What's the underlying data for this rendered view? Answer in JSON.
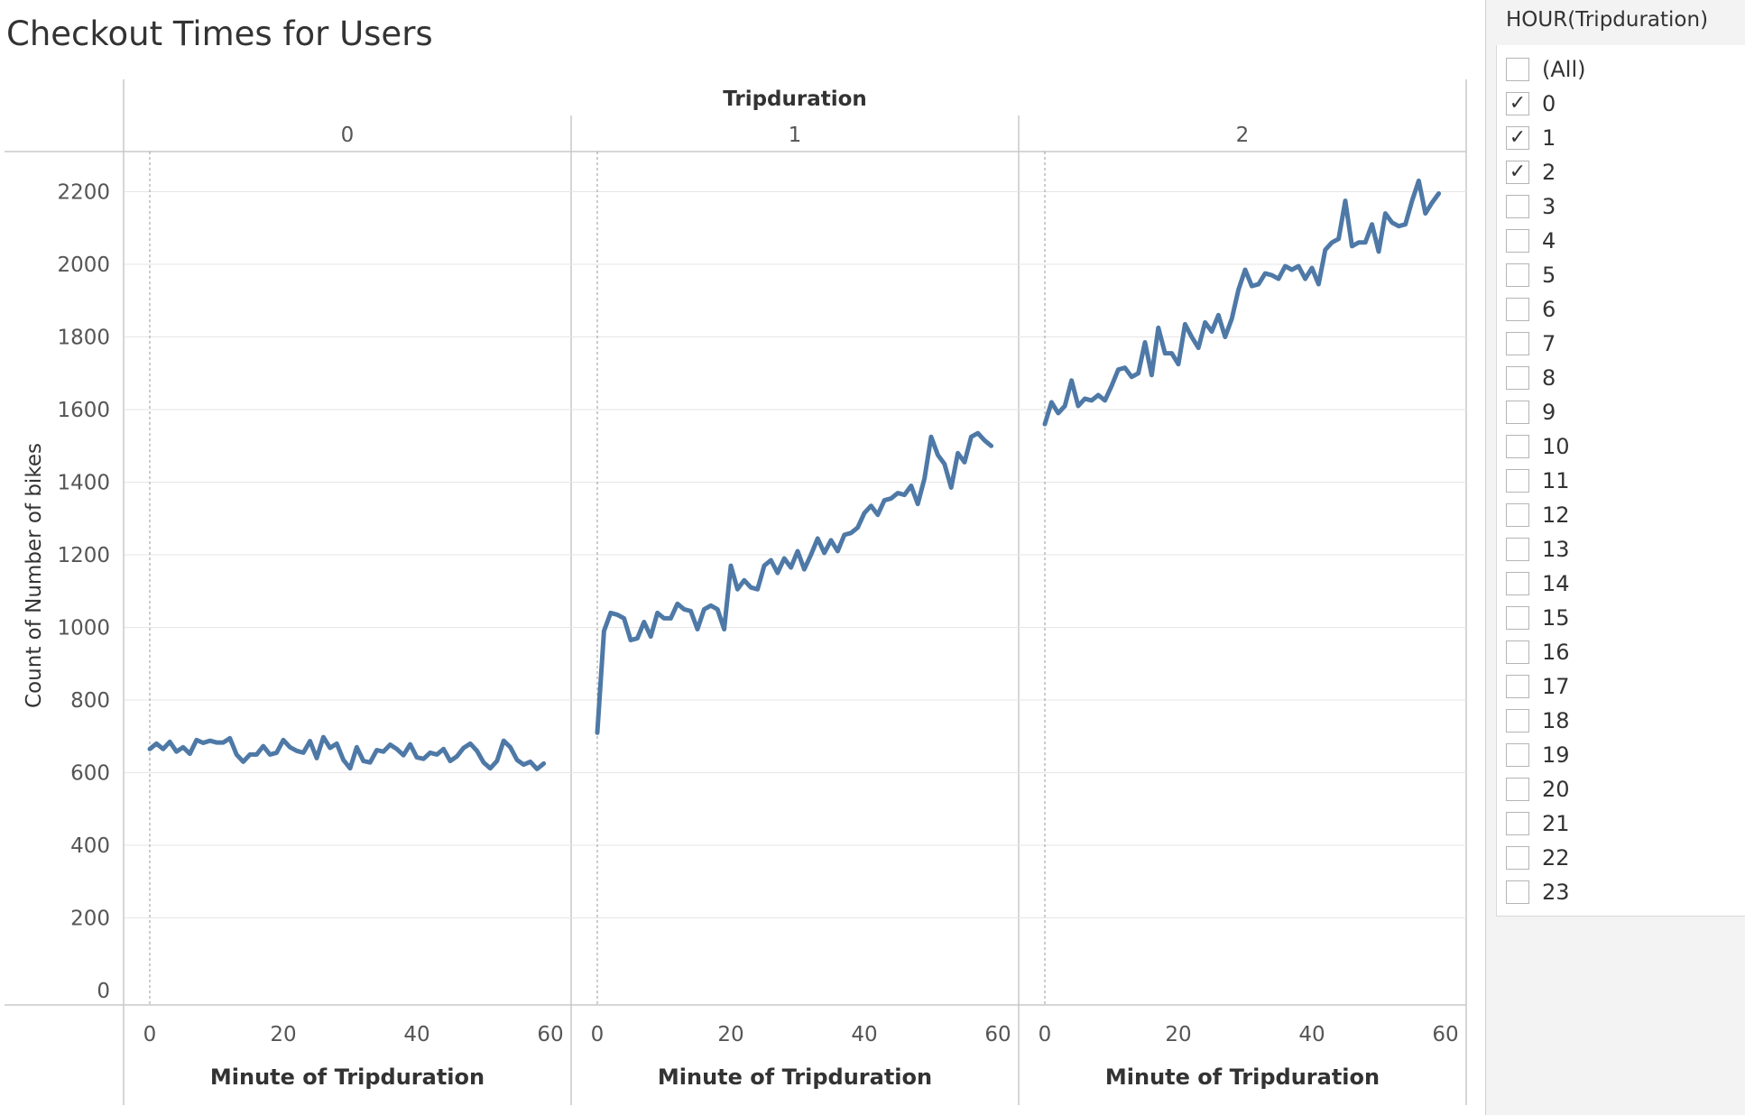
{
  "title": "Checkout Times for Users",
  "filter": {
    "title": "HOUR(Tripduration)",
    "items": [
      {
        "label": "(All)",
        "checked": false
      },
      {
        "label": "0",
        "checked": true
      },
      {
        "label": "1",
        "checked": true
      },
      {
        "label": "2",
        "checked": true
      },
      {
        "label": "3",
        "checked": false
      },
      {
        "label": "4",
        "checked": false
      },
      {
        "label": "5",
        "checked": false
      },
      {
        "label": "6",
        "checked": false
      },
      {
        "label": "7",
        "checked": false
      },
      {
        "label": "8",
        "checked": false
      },
      {
        "label": "9",
        "checked": false
      },
      {
        "label": "10",
        "checked": false
      },
      {
        "label": "11",
        "checked": false
      },
      {
        "label": "12",
        "checked": false
      },
      {
        "label": "13",
        "checked": false
      },
      {
        "label": "14",
        "checked": false
      },
      {
        "label": "15",
        "checked": false
      },
      {
        "label": "16",
        "checked": false
      },
      {
        "label": "17",
        "checked": false
      },
      {
        "label": "18",
        "checked": false
      },
      {
        "label": "19",
        "checked": false
      },
      {
        "label": "20",
        "checked": false
      },
      {
        "label": "21",
        "checked": false
      },
      {
        "label": "22",
        "checked": false
      },
      {
        "label": "23",
        "checked": false
      }
    ]
  },
  "colors": {
    "line": "#4e79a7",
    "grid": "#e6e6e6",
    "axis": "#c8c8c8",
    "text": "#555555"
  },
  "chart_data": {
    "type": "line",
    "title": "Checkout Times for Users",
    "column_header": "Tripduration",
    "xlabel": "Minute of Tripduration",
    "ylabel": "Count of Number of bikes",
    "xlim": [
      0,
      60
    ],
    "ylim": [
      0,
      2300
    ],
    "x_ticks": [
      0,
      20,
      40,
      60
    ],
    "y_ticks": [
      0,
      200,
      400,
      600,
      800,
      1000,
      1200,
      1400,
      1600,
      1800,
      2000,
      2200
    ],
    "grid": true,
    "panels": [
      {
        "label": "0",
        "x": [
          0,
          1,
          2,
          3,
          4,
          5,
          6,
          7,
          8,
          9,
          10,
          11,
          12,
          13,
          14,
          15,
          16,
          17,
          18,
          19,
          20,
          21,
          22,
          23,
          24,
          25,
          26,
          27,
          28,
          29,
          30,
          31,
          32,
          33,
          34,
          35,
          36,
          37,
          38,
          39,
          40,
          41,
          42,
          43,
          44,
          45,
          46,
          47,
          48,
          49,
          50,
          51,
          52,
          53,
          54,
          55,
          56,
          57,
          58,
          59
        ],
        "values": [
          665,
          680,
          665,
          685,
          658,
          670,
          652,
          690,
          682,
          688,
          683,
          683,
          695,
          650,
          630,
          650,
          650,
          673,
          650,
          655,
          690,
          670,
          660,
          655,
          687,
          640,
          698,
          668,
          680,
          635,
          612,
          670,
          632,
          628,
          662,
          658,
          677,
          665,
          648,
          678,
          642,
          638,
          655,
          650,
          665,
          632,
          645,
          668,
          680,
          660,
          628,
          612,
          632,
          688,
          670,
          635,
          622,
          630,
          610,
          625
        ]
      },
      {
        "label": "1",
        "x": [
          0,
          1,
          2,
          3,
          4,
          5,
          6,
          7,
          8,
          9,
          10,
          11,
          12,
          13,
          14,
          15,
          16,
          17,
          18,
          19,
          20,
          21,
          22,
          23,
          24,
          25,
          26,
          27,
          28,
          29,
          30,
          31,
          32,
          33,
          34,
          35,
          36,
          37,
          38,
          39,
          40,
          41,
          42,
          43,
          44,
          45,
          46,
          47,
          48,
          49,
          50,
          51,
          52,
          53,
          54,
          55,
          56,
          57,
          58,
          59
        ],
        "values": [
          710,
          990,
          1040,
          1035,
          1025,
          965,
          970,
          1015,
          975,
          1040,
          1025,
          1025,
          1065,
          1050,
          1045,
          995,
          1050,
          1060,
          1050,
          995,
          1170,
          1105,
          1130,
          1110,
          1105,
          1170,
          1185,
          1150,
          1190,
          1165,
          1210,
          1160,
          1200,
          1245,
          1205,
          1240,
          1210,
          1255,
          1260,
          1275,
          1315,
          1335,
          1310,
          1350,
          1355,
          1370,
          1365,
          1390,
          1340,
          1410,
          1525,
          1475,
          1450,
          1385,
          1480,
          1455,
          1525,
          1535,
          1515,
          1500
        ]
      },
      {
        "label": "2",
        "x": [
          0,
          1,
          2,
          3,
          4,
          5,
          6,
          7,
          8,
          9,
          10,
          11,
          12,
          13,
          14,
          15,
          16,
          17,
          18,
          19,
          20,
          21,
          22,
          23,
          24,
          25,
          26,
          27,
          28,
          29,
          30,
          31,
          32,
          33,
          34,
          35,
          36,
          37,
          38,
          39,
          40,
          41,
          42,
          43,
          44,
          45,
          46,
          47,
          48,
          49,
          50,
          51,
          52,
          53,
          54,
          55,
          56,
          57,
          58,
          59
        ],
        "values": [
          1560,
          1620,
          1590,
          1610,
          1680,
          1610,
          1630,
          1625,
          1640,
          1625,
          1665,
          1710,
          1715,
          1690,
          1700,
          1785,
          1695,
          1825,
          1755,
          1755,
          1725,
          1835,
          1800,
          1770,
          1840,
          1815,
          1860,
          1800,
          1850,
          1930,
          1985,
          1940,
          1945,
          1975,
          1970,
          1960,
          1995,
          1985,
          1995,
          1960,
          1990,
          1945,
          2040,
          2060,
          2070,
          2175,
          2050,
          2060,
          2060,
          2110,
          2035,
          2140,
          2115,
          2105,
          2110,
          2175,
          2230,
          2140,
          2170,
          2195
        ]
      }
    ]
  }
}
